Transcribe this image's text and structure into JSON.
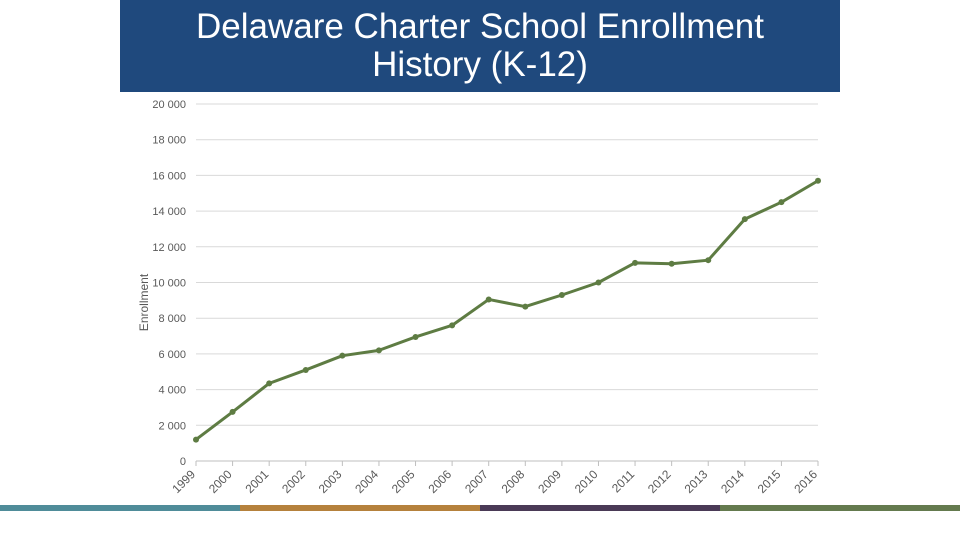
{
  "chart_data": {
    "type": "line",
    "title": "Delaware Charter School Enrollment History (K-12)",
    "ylabel": "Enrollment",
    "xlabel": "",
    "ylim": [
      0,
      20000
    ],
    "yticks": [
      0,
      2000,
      4000,
      6000,
      8000,
      10000,
      12000,
      14000,
      16000,
      18000,
      20000
    ],
    "ytick_labels": [
      "0",
      "2 000",
      "4 000",
      "6 000",
      "8 000",
      "10 000",
      "12 000",
      "14 000",
      "16 000",
      "18 000",
      "20 000"
    ],
    "grid": true,
    "legend": "none",
    "categories": [
      "1999",
      "2000",
      "2001",
      "2002",
      "2003",
      "2004",
      "2005",
      "2006",
      "2007",
      "2008",
      "2009",
      "2010",
      "2011",
      "2012",
      "2013",
      "2014",
      "2015",
      "2016"
    ],
    "series": [
      {
        "values": [
          1200,
          2750,
          4350,
          5100,
          5900,
          6200,
          6950,
          7600,
          9050,
          8650,
          9300,
          10000,
          11100,
          11050,
          11250,
          13550,
          14500,
          15700
        ],
        "color": "#5e7c43"
      }
    ]
  },
  "bottom_bar_colors": [
    "#4f8c99",
    "#b5813c",
    "#4a3a56",
    "#647a4e"
  ]
}
